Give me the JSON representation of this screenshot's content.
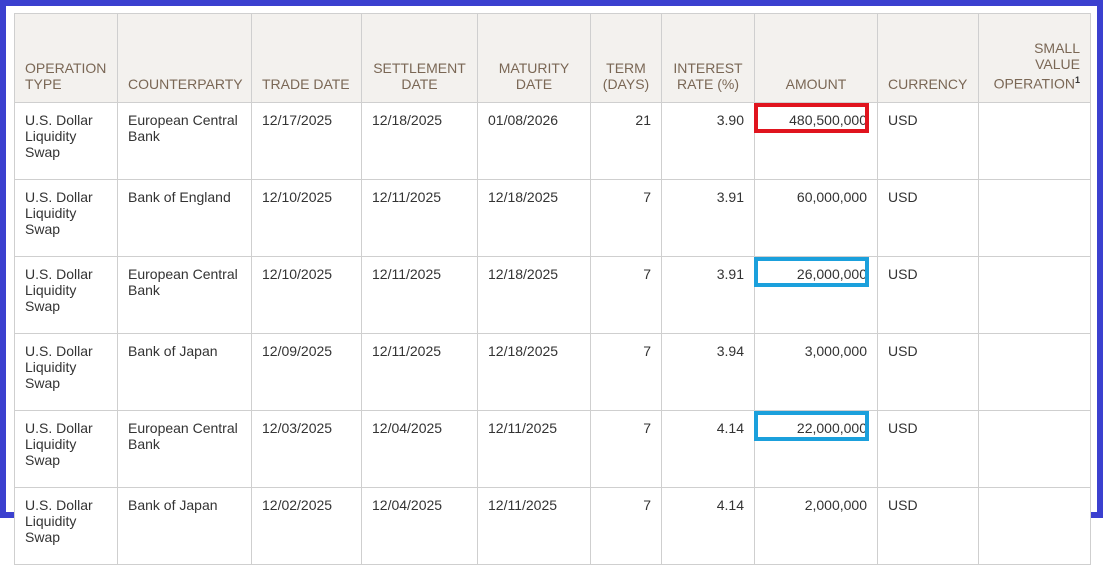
{
  "table": {
    "headers": [
      "OPERATION TYPE",
      "COUNTERPARTY",
      "TRADE DATE",
      "SETTLEMENT DATE",
      "MATURITY DATE",
      "TERM (DAYS)",
      "INTEREST RATE (%)",
      "AMOUNT",
      "CURRENCY",
      "SMALL VALUE OPERATION"
    ],
    "header_footnote": "1",
    "rows": [
      [
        "U.S. Dollar Liquidity Swap",
        "European Central Bank",
        "12/17/2025",
        "12/18/2025",
        "01/08/2026",
        "21",
        "3.90",
        "480,500,000",
        "USD"
      ],
      [
        "U.S. Dollar Liquidity Swap",
        "Bank of England",
        "12/10/2025",
        "12/11/2025",
        "12/18/2025",
        "7",
        "3.91",
        "60,000,000",
        "USD"
      ],
      [
        "U.S. Dollar Liquidity Swap",
        "European Central Bank",
        "12/10/2025",
        "12/11/2025",
        "12/18/2025",
        "7",
        "3.91",
        "26,000,000",
        "USD"
      ],
      [
        "U.S. Dollar Liquidity Swap",
        "Bank of Japan",
        "12/09/2025",
        "12/11/2025",
        "12/18/2025",
        "7",
        "3.94",
        "3,000,000",
        "USD"
      ],
      [
        "U.S. Dollar Liquidity Swap",
        "European Central Bank",
        "12/03/2025",
        "12/04/2025",
        "12/11/2025",
        "7",
        "4.14",
        "22,000,000",
        "USD"
      ],
      [
        "U.S. Dollar Liquidity Swap",
        "Bank of Japan",
        "12/02/2025",
        "12/04/2025",
        "12/11/2025",
        "7",
        "4.14",
        "2,000,000",
        "USD"
      ]
    ]
  }
}
